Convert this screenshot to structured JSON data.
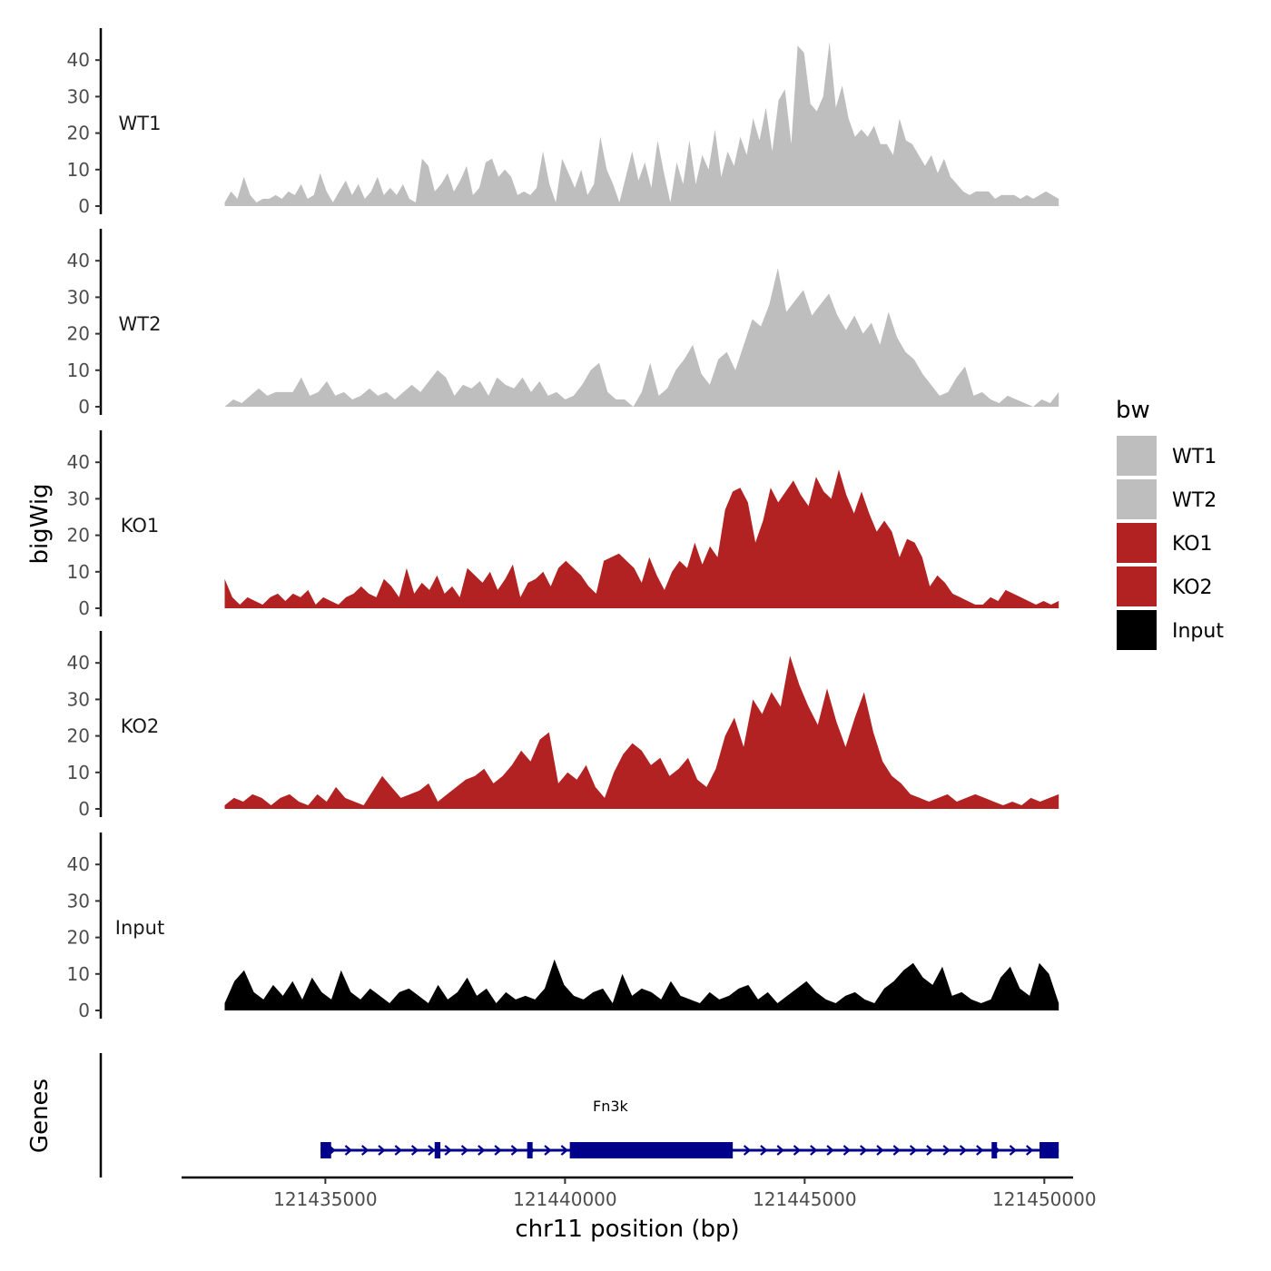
{
  "chart_data": {
    "type": "area",
    "chromosome": "chr11",
    "xlabel": "chr11 position (bp)",
    "ylabel": "bigWig",
    "xlim": [
      121432000,
      121450600
    ],
    "data_x_range": [
      121432900,
      121450300
    ],
    "x_ticks": [
      121435000,
      121440000,
      121445000,
      121450000
    ],
    "x_tick_labels": [
      "121435000",
      "121440000",
      "121445000",
      "121450000"
    ],
    "ylim": [
      0,
      48
    ],
    "y_ticks": [
      0,
      10,
      20,
      30,
      40
    ],
    "y_tick_labels": [
      "0",
      "10",
      "20",
      "30",
      "40"
    ],
    "legend": {
      "title": "bw",
      "placement": "right",
      "entries": [
        {
          "label": "WT1",
          "color": "#bebebe"
        },
        {
          "label": "WT2",
          "color": "#bebebe"
        },
        {
          "label": "KO1",
          "color": "#b22222"
        },
        {
          "label": "KO2",
          "color": "#b22222"
        },
        {
          "label": "Input",
          "color": "#000000"
        }
      ]
    },
    "series": [
      {
        "name": "WT1",
        "color": "#bebebe",
        "values": [
          1,
          4,
          2,
          8,
          3,
          1,
          2,
          2,
          3,
          2,
          4,
          3,
          6,
          2,
          3,
          9,
          4,
          1,
          4,
          7,
          3,
          6,
          2,
          4,
          8,
          3,
          5,
          3,
          6,
          2,
          1,
          13,
          11,
          4,
          6,
          9,
          4,
          7,
          11,
          3,
          5,
          12,
          13,
          8,
          10,
          8,
          3,
          4,
          3,
          5,
          15,
          6,
          1,
          13,
          9,
          5,
          10,
          3,
          6,
          19,
          10,
          6,
          1,
          8,
          15,
          7,
          12,
          5,
          18,
          9,
          1,
          12,
          6,
          18,
          6,
          14,
          10,
          21,
          8,
          15,
          11,
          19,
          14,
          24,
          18,
          27,
          15,
          29,
          32,
          17,
          44,
          42,
          28,
          26,
          30,
          45,
          27,
          33,
          24,
          19,
          21,
          19,
          22,
          17,
          17,
          14,
          24,
          18,
          17,
          14,
          11,
          14,
          9,
          13,
          8,
          6,
          4,
          3,
          4,
          4,
          4,
          2,
          3,
          3,
          3,
          2,
          3,
          2,
          3,
          4,
          3,
          2
        ],
        "n_points": 132
      },
      {
        "name": "WT2",
        "color": "#bebebe",
        "values": [
          0,
          2,
          1,
          3,
          5,
          3,
          4,
          4,
          4,
          8,
          3,
          4,
          7,
          3,
          4,
          2,
          3,
          5,
          3,
          4,
          2,
          4,
          6,
          4,
          7,
          10,
          8,
          3,
          6,
          5,
          7,
          3,
          8,
          6,
          5,
          8,
          4,
          7,
          3,
          4,
          2,
          3,
          6,
          10,
          12,
          4,
          2,
          2,
          0,
          4,
          12,
          3,
          5,
          10,
          13,
          17,
          9,
          6,
          13,
          15,
          10,
          17,
          24,
          22,
          28,
          38,
          26,
          29,
          32,
          25,
          28,
          31,
          25,
          21,
          25,
          20,
          23,
          17,
          26,
          19,
          15,
          13,
          9,
          6,
          3,
          4,
          8,
          11,
          3,
          4,
          2,
          1,
          3,
          2,
          1,
          0,
          2,
          1,
          4
        ],
        "n_points": 99
      },
      {
        "name": "KO1",
        "color": "#b22222",
        "values": [
          8,
          3,
          1,
          3,
          2,
          1,
          3,
          4,
          2,
          4,
          3,
          5,
          1,
          3,
          2,
          1,
          3,
          4,
          6,
          4,
          3,
          8,
          6,
          3,
          11,
          4,
          7,
          5,
          9,
          4,
          6,
          3,
          11,
          9,
          7,
          10,
          5,
          8,
          12,
          3,
          7,
          8,
          10,
          6,
          11,
          13,
          11,
          9,
          6,
          4,
          13,
          14,
          15,
          13,
          11,
          7,
          14,
          9,
          5,
          10,
          13,
          11,
          18,
          12,
          17,
          14,
          27,
          32,
          33,
          29,
          18,
          24,
          33,
          29,
          32,
          35,
          31,
          28,
          36,
          32,
          30,
          38,
          31,
          26,
          32,
          26,
          21,
          24,
          21,
          14,
          19,
          18,
          14,
          6,
          9,
          7,
          4,
          3,
          2,
          1,
          1,
          3,
          2,
          5,
          4,
          3,
          2,
          1,
          2,
          1,
          2
        ],
        "n_points": 111
      },
      {
        "name": "KO2",
        "color": "#b22222",
        "values": [
          1,
          3,
          2,
          4,
          3,
          1,
          3,
          4,
          2,
          1,
          4,
          2,
          6,
          3,
          2,
          1,
          5,
          9,
          6,
          3,
          4,
          5,
          7,
          2,
          4,
          6,
          8,
          9,
          11,
          7,
          9,
          12,
          16,
          13,
          19,
          21,
          7,
          10,
          8,
          12,
          6,
          3,
          10,
          15,
          18,
          16,
          12,
          14,
          9,
          11,
          14,
          8,
          6,
          11,
          20,
          25,
          17,
          30,
          26,
          32,
          28,
          42,
          34,
          28,
          23,
          33,
          24,
          17,
          25,
          32,
          21,
          13,
          9,
          7,
          4,
          3,
          2,
          3,
          4,
          2,
          3,
          4,
          3,
          2,
          1,
          2,
          1,
          3,
          2,
          3,
          4
        ],
        "n_points": 91
      },
      {
        "name": "Input",
        "color": "#000000",
        "values": [
          2,
          8,
          11,
          5,
          3,
          7,
          4,
          8,
          3,
          9,
          5,
          3,
          11,
          5,
          3,
          6,
          4,
          2,
          5,
          6,
          4,
          2,
          7,
          3,
          5,
          9,
          4,
          6,
          2,
          5,
          3,
          4,
          3,
          6,
          14,
          7,
          4,
          3,
          5,
          6,
          2,
          10,
          4,
          6,
          5,
          3,
          8,
          4,
          3,
          2,
          5,
          3,
          4,
          6,
          7,
          3,
          5,
          2,
          4,
          6,
          8,
          5,
          3,
          2,
          4,
          5,
          3,
          2,
          6,
          8,
          11,
          13,
          9,
          7,
          12,
          4,
          5,
          3,
          2,
          3,
          9,
          12,
          6,
          4,
          13,
          10,
          2
        ],
        "n_points": 87
      }
    ],
    "genes_track": {
      "label": "Genes",
      "gene_name": "Fn3k",
      "strand": "+",
      "color": "#00008b",
      "start": 121434900,
      "end": 121450300,
      "exons": [
        {
          "start": 121434900,
          "end": 121435120,
          "type": "exon"
        },
        {
          "start": 121437280,
          "end": 121437400,
          "type": "exon"
        },
        {
          "start": 121439210,
          "end": 121439320,
          "type": "exon"
        },
        {
          "start": 121440100,
          "end": 121443500,
          "type": "cds"
        },
        {
          "start": 121448900,
          "end": 121449000,
          "type": "exon"
        },
        {
          "start": 121449900,
          "end": 121450300,
          "type": "exon"
        }
      ]
    }
  }
}
